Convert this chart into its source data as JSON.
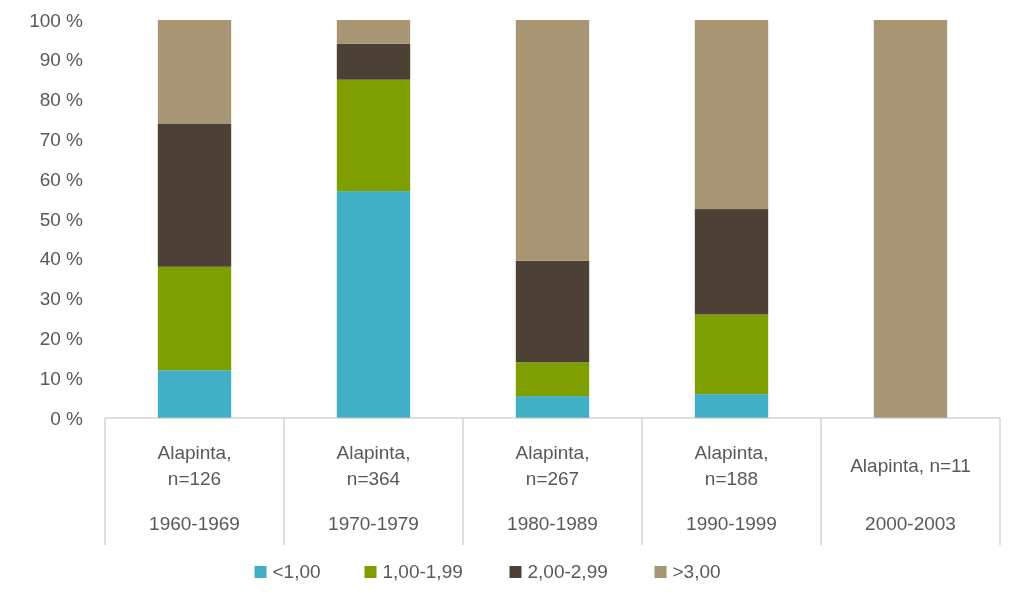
{
  "chart_data": {
    "type": "bar",
    "stacked": true,
    "categories": [
      "Alapinta, n=126\n1960-1969",
      "Alapinta, n=364\n1970-1979",
      "Alapinta, n=267\n1980-1989",
      "Alapinta, n=188\n1990-1999",
      "Alapinta, n=11\n2000-2003"
    ],
    "series": [
      {
        "name": "<1,00",
        "color": "#41b0c6",
        "values": [
          12,
          57,
          5.5,
          6,
          0
        ]
      },
      {
        "name": "1,00-1,99",
        "color": "#7f9e00",
        "values": [
          26,
          28,
          8.5,
          20,
          0
        ]
      },
      {
        "name": "2,00-2,99",
        "color": "#4d4034",
        "values": [
          36,
          9,
          25.5,
          26.5,
          0
        ]
      },
      {
        "name": ">3,00",
        "color": "#a89574",
        "values": [
          26,
          6,
          60.5,
          47.5,
          100
        ]
      }
    ],
    "ylim": [
      0,
      100
    ],
    "yticks": [
      {
        "value": 0,
        "label": "0 %"
      },
      {
        "value": 10,
        "label": "10 %"
      },
      {
        "value": 20,
        "label": "20 %"
      },
      {
        "value": 30,
        "label": "30 %"
      },
      {
        "value": 40,
        "label": "40 %"
      },
      {
        "value": 50,
        "label": "50 %"
      },
      {
        "value": 60,
        "label": "60 %"
      },
      {
        "value": 70,
        "label": "70 %"
      },
      {
        "value": 80,
        "label": "80 %"
      },
      {
        "value": 90,
        "label": "90 %"
      },
      {
        "value": 100,
        "label": "100 %"
      }
    ],
    "legend": "bottom"
  }
}
